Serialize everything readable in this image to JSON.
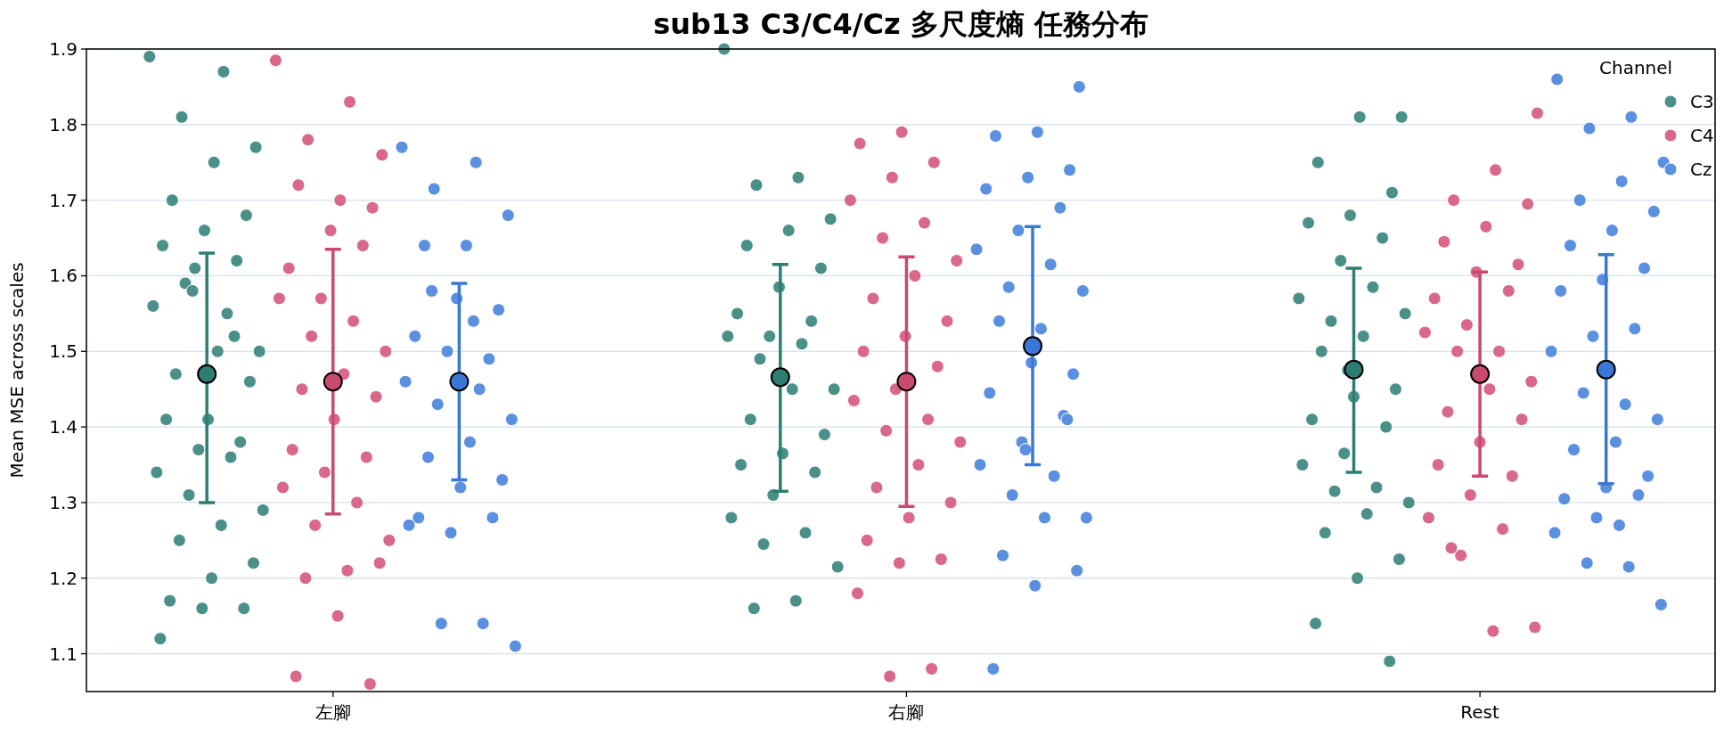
{
  "chart_data": {
    "type": "scatter",
    "title": "sub13 C3/C4/Cz 多尺度熵 任務分布",
    "ylabel": "Mean MSE across scales",
    "legend_title": "Channel",
    "legend": "top right",
    "grid": "y",
    "marker": "circle",
    "categories": [
      "左腳",
      "右腳",
      "Rest"
    ],
    "ylim": [
      1.05,
      1.9
    ],
    "yticks": [
      1.1,
      1.2,
      1.3,
      1.4,
      1.5,
      1.6,
      1.7,
      1.8,
      1.9
    ],
    "series": [
      {
        "name": "C3",
        "color": "#4b9088",
        "x": [
          "左腳",
          "左腳",
          "左腳",
          "左腳",
          "左腳",
          "左腳",
          "左腳",
          "左腳",
          "左腳",
          "左腳",
          "左腳",
          "左腳",
          "左腳",
          "左腳",
          "左腳",
          "左腳",
          "左腳",
          "左腳",
          "左腳",
          "左腳",
          "左腳",
          "左腳",
          "左腳",
          "左腳",
          "左腳",
          "左腳",
          "左腳",
          "左腳",
          "左腳",
          "左腳",
          "左腳",
          "左腳",
          "左腳",
          "左腳",
          "左腳",
          "左腳",
          "右腳",
          "右腳",
          "右腳",
          "右腳",
          "右腳",
          "右腳",
          "右腳",
          "右腳",
          "右腳",
          "右腳",
          "右腳",
          "右腳",
          "右腳",
          "右腳",
          "右腳",
          "右腳",
          "右腳",
          "右腳",
          "右腳",
          "右腳",
          "右腳",
          "右腳",
          "右腳",
          "右腳",
          "右腳",
          "右腳",
          "右腳",
          "右腳",
          "Rest",
          "Rest",
          "Rest",
          "Rest",
          "Rest",
          "Rest",
          "Rest",
          "Rest",
          "Rest",
          "Rest",
          "Rest",
          "Rest",
          "Rest",
          "Rest",
          "Rest",
          "Rest",
          "Rest",
          "Rest",
          "Rest",
          "Rest",
          "Rest",
          "Rest",
          "Rest",
          "Rest",
          "Rest",
          "Rest",
          "Rest",
          "Rest",
          "Rest",
          "Rest"
        ],
        "values": [
          1.89,
          1.87,
          1.81,
          1.77,
          1.75,
          1.7,
          1.68,
          1.66,
          1.64,
          1.62,
          1.61,
          1.56,
          1.55,
          1.59,
          1.5,
          1.5,
          1.47,
          1.46,
          1.41,
          1.41,
          1.38,
          1.37,
          1.34,
          1.36,
          1.31,
          1.29,
          1.27,
          1.25,
          1.22,
          1.2,
          1.17,
          1.16,
          1.16,
          1.12,
          1.52,
          1.58,
          1.9,
          1.73,
          1.72,
          1.675,
          1.66,
          1.64,
          1.61,
          1.585,
          1.55,
          1.54,
          1.52,
          1.52,
          1.51,
          1.49,
          1.45,
          1.45,
          1.41,
          1.39,
          1.365,
          1.35,
          1.34,
          1.31,
          1.28,
          1.26,
          1.245,
          1.215,
          1.17,
          1.16,
          1.81,
          1.81,
          1.75,
          1.71,
          1.68,
          1.67,
          1.65,
          1.62,
          1.57,
          1.585,
          1.54,
          1.55,
          1.52,
          1.5,
          1.45,
          1.44,
          1.41,
          1.4,
          1.365,
          1.35,
          1.32,
          1.315,
          1.3,
          1.285,
          1.26,
          1.225,
          1.2,
          1.14,
          1.09,
          1.475
        ]
      },
      {
        "name": "C4",
        "color": "#d9688a",
        "x": [
          "左腳",
          "左腳",
          "左腳",
          "左腳",
          "左腳",
          "左腳",
          "左腳",
          "左腳",
          "左腳",
          "左腳",
          "左腳",
          "左腳",
          "左腳",
          "左腳",
          "左腳",
          "左腳",
          "左腳",
          "左腳",
          "左腳",
          "左腳",
          "左腳",
          "左腳",
          "左腳",
          "左腳",
          "左腳",
          "左腳",
          "左腳",
          "左腳",
          "左腳",
          "左腳",
          "左腳",
          "左腳",
          "右腳",
          "右腳",
          "右腳",
          "右腳",
          "右腳",
          "右腳",
          "右腳",
          "右腳",
          "右腳",
          "右腳",
          "右腳",
          "右腳",
          "右腳",
          "右腳",
          "右腳",
          "右腳",
          "右腳",
          "右腳",
          "右腳",
          "右腳",
          "右腳",
          "右腳",
          "右腳",
          "右腳",
          "右腳",
          "右腳",
          "右腳",
          "右腳",
          "右腳",
          "Rest",
          "Rest",
          "Rest",
          "Rest",
          "Rest",
          "Rest",
          "Rest",
          "Rest",
          "Rest",
          "Rest",
          "Rest",
          "Rest",
          "Rest",
          "Rest",
          "Rest",
          "Rest",
          "Rest",
          "Rest",
          "Rest",
          "Rest",
          "Rest",
          "Rest",
          "Rest",
          "Rest",
          "Rest",
          "Rest",
          "Rest",
          "Rest"
        ],
        "values": [
          1.885,
          1.83,
          1.78,
          1.76,
          1.7,
          1.72,
          1.69,
          1.66,
          1.61,
          1.64,
          1.57,
          1.57,
          1.54,
          1.52,
          1.5,
          1.47,
          1.45,
          1.44,
          1.41,
          1.37,
          1.36,
          1.34,
          1.32,
          1.3,
          1.27,
          1.25,
          1.21,
          1.2,
          1.22,
          1.15,
          1.07,
          1.06,
          1.79,
          1.775,
          1.75,
          1.73,
          1.7,
          1.67,
          1.65,
          1.62,
          1.6,
          1.57,
          1.54,
          1.52,
          1.5,
          1.48,
          1.45,
          1.435,
          1.41,
          1.395,
          1.38,
          1.35,
          1.32,
          1.3,
          1.28,
          1.25,
          1.225,
          1.22,
          1.18,
          1.08,
          1.07,
          1.815,
          1.74,
          1.7,
          1.695,
          1.665,
          1.645,
          1.615,
          1.605,
          1.57,
          1.58,
          1.535,
          1.525,
          1.5,
          1.5,
          1.46,
          1.45,
          1.42,
          1.41,
          1.38,
          1.35,
          1.335,
          1.31,
          1.28,
          1.265,
          1.23,
          1.135,
          1.13,
          1.24
        ]
      },
      {
        "name": "Cz",
        "color": "#5b8fe0",
        "x": [
          "左腳",
          "左腳",
          "左腳",
          "左腳",
          "左腳",
          "左腳",
          "左腳",
          "左腳",
          "左腳",
          "左腳",
          "左腳",
          "左腳",
          "左腳",
          "左腳",
          "左腳",
          "左腳",
          "左腳",
          "左腳",
          "左腳",
          "左腳",
          "左腳",
          "左腳",
          "左腳",
          "左腳",
          "左腳",
          "左腳",
          "左腳",
          "左腳",
          "右腳",
          "右腳",
          "右腳",
          "右腳",
          "右腳",
          "右腳",
          "右腳",
          "右腳",
          "右腳",
          "右腳",
          "右腳",
          "右腳",
          "右腳",
          "右腳",
          "右腳",
          "右腳",
          "右腳",
          "右腳",
          "右腳",
          "右腳",
          "右腳",
          "右腳",
          "右腳",
          "右腳",
          "右腳",
          "右腳",
          "右腳",
          "右腳",
          "右腳",
          "右腳",
          "Rest",
          "Rest",
          "Rest",
          "Rest",
          "Rest",
          "Rest",
          "Rest",
          "Rest",
          "Rest",
          "Rest",
          "Rest",
          "Rest",
          "Rest",
          "Rest",
          "Rest",
          "Rest",
          "Rest",
          "Rest",
          "Rest",
          "Rest",
          "Rest",
          "Rest",
          "Rest",
          "Rest",
          "Rest",
          "Rest",
          "Rest",
          "Rest",
          "Rest",
          "Rest"
        ],
        "values": [
          1.77,
          1.75,
          1.715,
          1.68,
          1.64,
          1.64,
          1.555,
          1.57,
          1.52,
          1.49,
          1.5,
          1.46,
          1.45,
          1.43,
          1.41,
          1.38,
          1.36,
          1.33,
          1.32,
          1.28,
          1.28,
          1.26,
          1.27,
          1.14,
          1.14,
          1.11,
          1.54,
          1.58,
          1.85,
          1.79,
          1.785,
          1.74,
          1.73,
          1.715,
          1.69,
          1.66,
          1.635,
          1.615,
          1.585,
          1.58,
          1.53,
          1.54,
          1.47,
          1.485,
          1.445,
          1.415,
          1.38,
          1.35,
          1.335,
          1.31,
          1.28,
          1.28,
          1.23,
          1.21,
          1.19,
          1.08,
          1.41,
          1.37,
          1.86,
          1.81,
          1.795,
          1.75,
          1.725,
          1.7,
          1.685,
          1.66,
          1.64,
          1.61,
          1.595,
          1.58,
          1.53,
          1.52,
          1.5,
          1.43,
          1.445,
          1.41,
          1.38,
          1.37,
          1.335,
          1.32,
          1.305,
          1.31,
          1.28,
          1.26,
          1.215,
          1.22,
          1.165,
          1.27
        ]
      },
      {
        "color": "#2e7d72",
        "x": [
          "左腳",
          "右腳",
          "Rest"
        ],
        "values": [
          1.47,
          1.466,
          1.476
        ],
        "errors": [
          [
            1.3,
            1.63
          ],
          [
            1.315,
            1.615
          ],
          [
            1.34,
            1.61
          ]
        ]
      },
      {
        "color": "#c94a6e",
        "x": [
          "左腳",
          "右腳",
          "Rest"
        ],
        "values": [
          1.46,
          1.46,
          1.47
        ],
        "errors": [
          [
            1.285,
            1.635
          ],
          [
            1.295,
            1.625
          ],
          [
            1.335,
            1.605
          ]
        ]
      },
      {
        "color": "#3a78d8",
        "x": [
          "左腳",
          "右腳",
          "Rest"
        ],
        "values": [
          1.46,
          1.507,
          1.476
        ],
        "errors": [
          [
            1.33,
            1.59
          ],
          [
            1.35,
            1.665
          ],
          [
            1.325,
            1.628
          ]
        ]
      }
    ]
  }
}
